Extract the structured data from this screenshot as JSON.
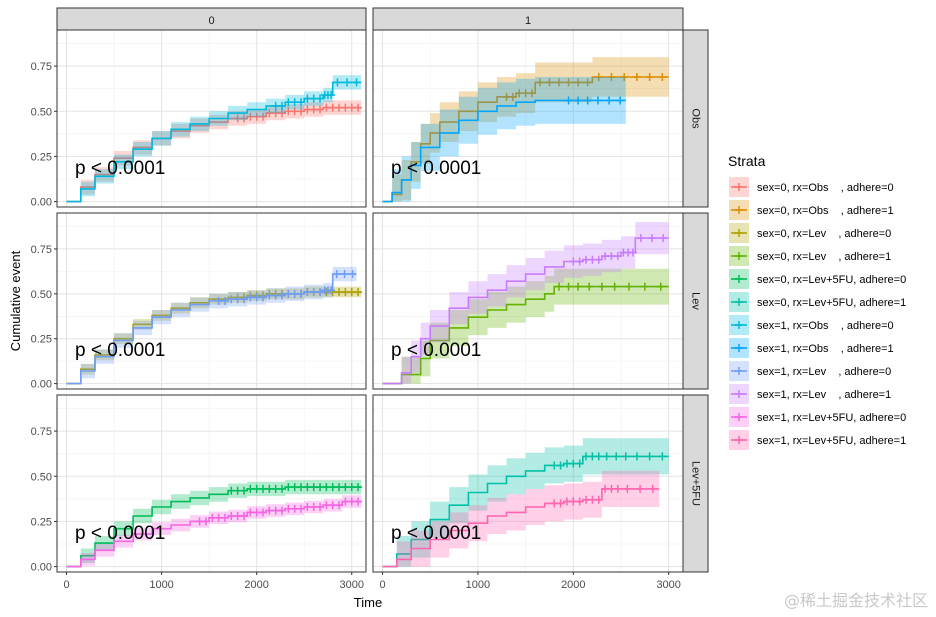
{
  "chart_data": {
    "type": "line",
    "xlabel": "Time",
    "ylabel": "Cumulative event",
    "xlim": [
      -100,
      3150
    ],
    "ylim": [
      -0.03,
      0.95
    ],
    "x_ticks": [
      0,
      1000,
      2000,
      3000
    ],
    "y_ticks": [
      0.0,
      0.25,
      0.5,
      0.75
    ],
    "y_tick_labels": [
      "0.00",
      "0.25",
      "0.50",
      "0.75"
    ],
    "facet_cols": [
      "0",
      "1"
    ],
    "facet_rows": [
      "Obs",
      "Lev",
      "Lev+5FU"
    ],
    "legend": {
      "title": "Strata",
      "position": "right",
      "items": [
        {
          "label": "sex=0, rx=Obs    , adhere=0",
          "color": "#F8766D"
        },
        {
          "label": "sex=0, rx=Obs    , adhere=1",
          "color": "#DB8E00"
        },
        {
          "label": "sex=0, rx=Lev    , adhere=0",
          "color": "#AEA200"
        },
        {
          "label": "sex=0, rx=Lev    , adhere=1",
          "color": "#64B200"
        },
        {
          "label": "sex=0, rx=Lev+5FU, adhere=0",
          "color": "#00BD5C"
        },
        {
          "label": "sex=0, rx=Lev+5FU, adhere=1",
          "color": "#00C1A7"
        },
        {
          "label": "sex=1, rx=Obs    , adhere=0",
          "color": "#00BADE"
        },
        {
          "label": "sex=1, rx=Obs    , adhere=1",
          "color": "#00A6FF"
        },
        {
          "label": "sex=1, rx=Lev    , adhere=0",
          "color": "#6F9EF8"
        },
        {
          "label": "sex=1, rx=Lev    , adhere=1",
          "color": "#C77CFF"
        },
        {
          "label": "sex=1, rx=Lev+5FU, adhere=0",
          "color": "#F564E3"
        },
        {
          "label": "sex=1, rx=Lev+5FU, adhere=1",
          "color": "#FF64B0"
        }
      ]
    },
    "panels": [
      {
        "col": "0",
        "row": "Obs",
        "pvalue": "p < 0.0001",
        "series": [
          {
            "name": "sex=0, rx=Obs    , adhere=0",
            "color": "#F8766D",
            "x": [
              0,
              150,
              300,
              500,
              700,
              900,
              1100,
              1300,
              1500,
              1700,
              1900,
              2100,
              2300,
              2500,
              2700,
              2900,
              3100
            ],
            "y": [
              0,
              0.08,
              0.15,
              0.24,
              0.3,
              0.35,
              0.39,
              0.42,
              0.44,
              0.46,
              0.47,
              0.49,
              0.5,
              0.51,
              0.52,
              0.52,
              0.52
            ],
            "band": 0.04,
            "censor_from": 1800
          },
          {
            "name": "sex=1, rx=Obs    , adhere=0",
            "color": "#00BADE",
            "x": [
              0,
              150,
              300,
              500,
              700,
              900,
              1100,
              1300,
              1500,
              1700,
              1900,
              2100,
              2300,
              2500,
              2700,
              2800,
              3100
            ],
            "y": [
              0,
              0.07,
              0.14,
              0.22,
              0.29,
              0.35,
              0.4,
              0.43,
              0.46,
              0.49,
              0.51,
              0.53,
              0.55,
              0.57,
              0.59,
              0.66,
              0.66
            ],
            "band": 0.04,
            "censor_from": 2200
          }
        ]
      },
      {
        "col": "1",
        "row": "Obs",
        "pvalue": "p < 0.0001",
        "series": [
          {
            "name": "sex=0, rx=Obs    , adhere=1",
            "color": "#DB8E00",
            "x": [
              0,
              100,
              200,
              300,
              400,
              500,
              600,
              800,
              1000,
              1200,
              1400,
              1600,
              1900,
              2200,
              2600,
              3000
            ],
            "y": [
              0,
              0.04,
              0.12,
              0.22,
              0.32,
              0.38,
              0.44,
              0.5,
              0.55,
              0.58,
              0.6,
              0.66,
              0.66,
              0.69,
              0.69,
              0.69
            ],
            "band": 0.11,
            "censor_from": 1300
          },
          {
            "name": "sex=1, rx=Obs    , adhere=1",
            "color": "#00A6FF",
            "x": [
              0,
              100,
              200,
              300,
              400,
              600,
              800,
              1000,
              1200,
              1400,
              1600,
              1900,
              2200,
              2550
            ],
            "y": [
              0,
              0.05,
              0.12,
              0.2,
              0.3,
              0.38,
              0.45,
              0.5,
              0.53,
              0.55,
              0.56,
              0.56,
              0.56,
              0.56
            ],
            "band": 0.13,
            "censor_from": 1900
          }
        ]
      },
      {
        "col": "0",
        "row": "Lev",
        "pvalue": "p < 0.0001",
        "series": [
          {
            "name": "sex=0, rx=Lev    , adhere=0",
            "color": "#AEA200",
            "x": [
              0,
              150,
              300,
              500,
              700,
              900,
              1100,
              1300,
              1500,
              1700,
              1900,
              2100,
              2300,
              2500,
              2700,
              2900,
              3100
            ],
            "y": [
              0,
              0.08,
              0.16,
              0.25,
              0.33,
              0.38,
              0.42,
              0.45,
              0.47,
              0.48,
              0.49,
              0.5,
              0.5,
              0.51,
              0.51,
              0.51,
              0.51
            ],
            "band": 0.03,
            "censor_from": 1800
          },
          {
            "name": "sex=1, rx=Lev    , adhere=0",
            "color": "#6F9EF8",
            "x": [
              0,
              150,
              300,
              500,
              700,
              900,
              1100,
              1300,
              1500,
              1700,
              1900,
              2100,
              2300,
              2500,
              2700,
              2800,
              3050
            ],
            "y": [
              0,
              0.07,
              0.15,
              0.24,
              0.31,
              0.37,
              0.41,
              0.44,
              0.46,
              0.47,
              0.48,
              0.49,
              0.5,
              0.51,
              0.52,
              0.61,
              0.61
            ],
            "band": 0.04,
            "censor_from": 1600
          }
        ]
      },
      {
        "col": "1",
        "row": "Lev",
        "pvalue": "p < 0.0001",
        "series": [
          {
            "name": "sex=0, rx=Lev    , adhere=1",
            "color": "#64B200",
            "x": [
              0,
              200,
              400,
              500,
              700,
              900,
              1100,
              1300,
              1500,
              1700,
              1800,
              2100,
              2500,
              3000
            ],
            "y": [
              0,
              0.05,
              0.14,
              0.24,
              0.31,
              0.37,
              0.41,
              0.44,
              0.47,
              0.5,
              0.54,
              0.54,
              0.54,
              0.54
            ],
            "band": 0.1,
            "censor_from": 1800
          },
          {
            "name": "sex=1, rx=Lev    , adhere=1",
            "color": "#C77CFF",
            "x": [
              0,
              200,
              300,
              400,
              500,
              700,
              900,
              1100,
              1300,
              1500,
              1700,
              1900,
              2100,
              2300,
              2500,
              2650,
              3000
            ],
            "y": [
              0,
              0.06,
              0.15,
              0.25,
              0.32,
              0.42,
              0.48,
              0.52,
              0.57,
              0.61,
              0.65,
              0.68,
              0.69,
              0.71,
              0.73,
              0.81,
              0.81
            ],
            "band": 0.09,
            "censor_from": 2000
          }
        ]
      },
      {
        "col": "0",
        "row": "Lev+5FU",
        "pvalue": "p < 0.0001",
        "series": [
          {
            "name": "sex=0, rx=Lev+5FU, adhere=0",
            "color": "#00BD5C",
            "x": [
              0,
              150,
              300,
              500,
              700,
              900,
              1100,
              1300,
              1500,
              1700,
              1900,
              2100,
              2300,
              2500,
              2700,
              2900,
              3100
            ],
            "y": [
              0,
              0.06,
              0.13,
              0.21,
              0.28,
              0.33,
              0.36,
              0.38,
              0.4,
              0.42,
              0.43,
              0.43,
              0.44,
              0.44,
              0.44,
              0.44,
              0.44
            ],
            "band": 0.04,
            "censor_from": 1700
          },
          {
            "name": "sex=1, rx=Lev+5FU, adhere=0",
            "color": "#F564E3",
            "x": [
              0,
              150,
              300,
              500,
              700,
              900,
              1100,
              1300,
              1500,
              1700,
              1900,
              2100,
              2300,
              2500,
              2700,
              2900,
              3100
            ],
            "y": [
              0,
              0.04,
              0.09,
              0.14,
              0.18,
              0.21,
              0.23,
              0.25,
              0.27,
              0.28,
              0.3,
              0.31,
              0.32,
              0.33,
              0.34,
              0.36,
              0.36
            ],
            "band": 0.035,
            "censor_from": 1400
          }
        ]
      },
      {
        "col": "1",
        "row": "Lev+5FU",
        "pvalue": "p < 0.0001",
        "series": [
          {
            "name": "sex=0, rx=Lev+5FU, adhere=1",
            "color": "#00C1A7",
            "x": [
              0,
              150,
              300,
              500,
              700,
              900,
              1100,
              1300,
              1500,
              1700,
              1900,
              2100,
              2300,
              2600,
              3000
            ],
            "y": [
              0,
              0.07,
              0.15,
              0.26,
              0.34,
              0.41,
              0.46,
              0.5,
              0.53,
              0.56,
              0.57,
              0.61,
              0.61,
              0.61,
              0.61
            ],
            "band": 0.1,
            "censor_from": 1800
          },
          {
            "name": "sex=1, rx=Lev+5FU, adhere=1",
            "color": "#FF64B0",
            "x": [
              0,
              150,
              300,
              500,
              700,
              900,
              1100,
              1300,
              1500,
              1700,
              1900,
              2100,
              2300,
              2500,
              2900
            ],
            "y": [
              0,
              0.04,
              0.1,
              0.15,
              0.2,
              0.24,
              0.28,
              0.3,
              0.33,
              0.35,
              0.36,
              0.37,
              0.43,
              0.43,
              0.43
            ],
            "band": 0.1,
            "censor_from": 1800
          }
        ]
      }
    ]
  },
  "watermark": "@稀土掘金技术社区"
}
